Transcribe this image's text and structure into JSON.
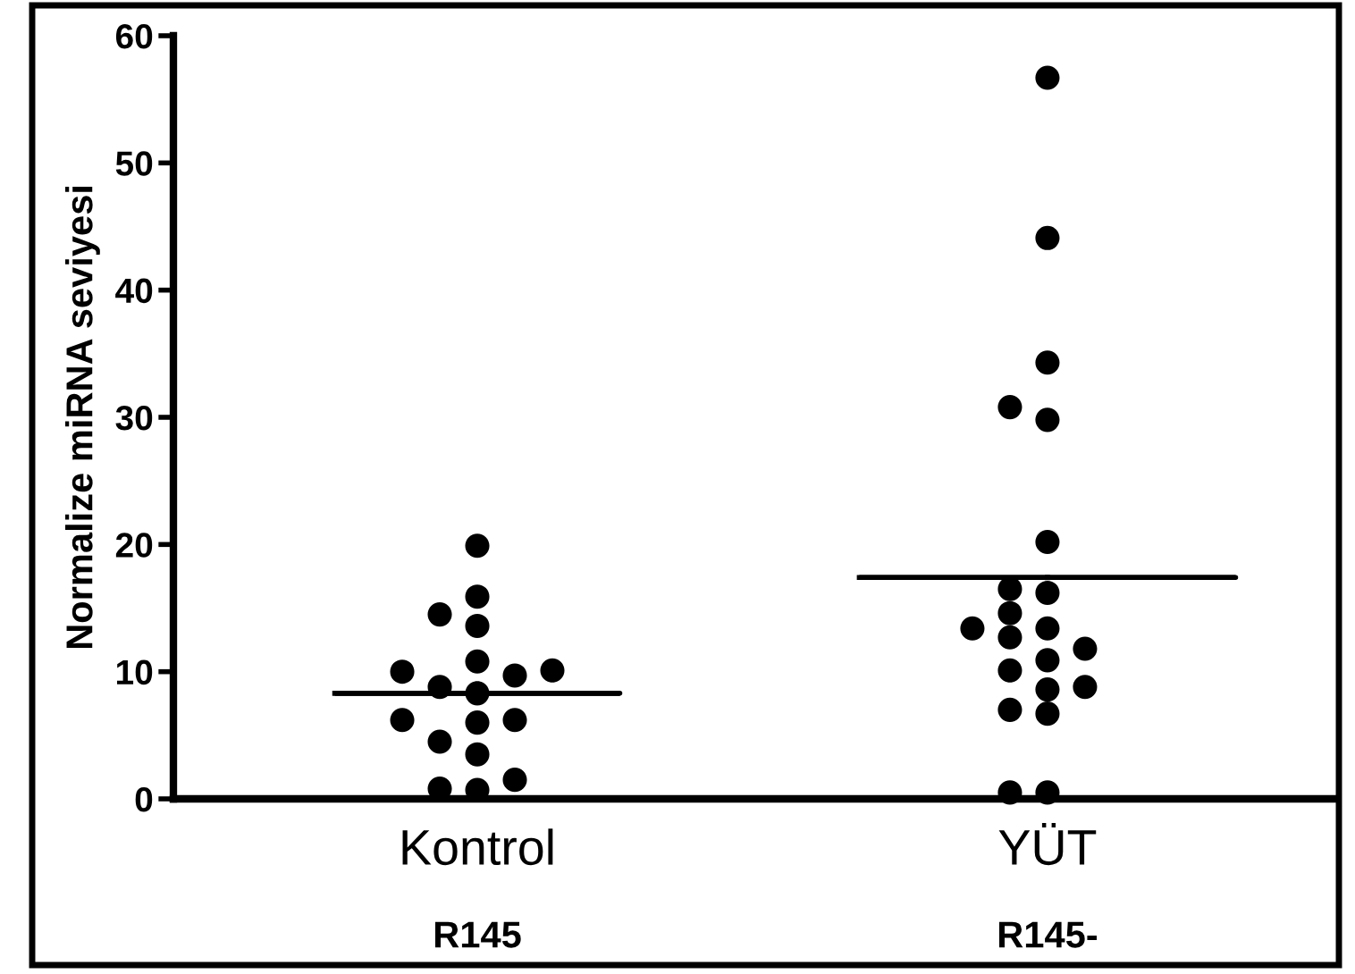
{
  "chart_data": {
    "type": "scatter",
    "ylabel": "Normalize miRNA seviyesi",
    "categories": [
      "Kontrol",
      "YÜT"
    ],
    "series": [
      {
        "color": "#000000",
        "marker": "circle",
        "x": [
          "Kontrol",
          "Kontrol",
          "Kontrol",
          "Kontrol",
          "Kontrol",
          "Kontrol",
          "Kontrol",
          "Kontrol",
          "Kontrol",
          "Kontrol",
          "Kontrol",
          "Kontrol",
          "Kontrol",
          "Kontrol",
          "Kontrol",
          "Kontrol",
          "Kontrol",
          "Kontrol"
        ],
        "values": [
          19.9,
          15.9,
          14.5,
          13.6,
          10.8,
          10.1,
          10.0,
          9.7,
          8.8,
          8.3,
          6.2,
          6.2,
          6.0,
          4.5,
          3.5,
          1.5,
          0.8,
          0.7
        ]
      },
      {
        "color": "#000000",
        "marker": "circle",
        "x": [
          "YÜT",
          "YÜT",
          "YÜT",
          "YÜT",
          "YÜT",
          "YÜT",
          "YÜT",
          "YÜT",
          "YÜT",
          "YÜT",
          "YÜT",
          "YÜT",
          "YÜT",
          "YÜT",
          "YÜT",
          "YÜT",
          "YÜT",
          "YÜT",
          "YÜT",
          "YÜT",
          "YÜT"
        ],
        "values": [
          56.7,
          44.1,
          34.3,
          30.8,
          29.8,
          20.2,
          16.5,
          16.2,
          14.6,
          13.4,
          13.4,
          12.7,
          11.8,
          10.9,
          10.1,
          8.8,
          8.6,
          7.0,
          6.7,
          0.5,
          0.5
        ]
      },
      {
        "type": "box",
        "color": "#000000",
        "boxes": [
          {
            "low": 8.3,
            "q1": 8.3,
            "median": 8.3,
            "q3": 8.3,
            "high": 8.3
          },
          {
            "low": 17.4,
            "q1": 17.4,
            "median": 17.4,
            "q3": 17.4,
            "high": 17.4
          }
        ]
      }
    ],
    "ylim": [
      0,
      60
    ],
    "yticks": [
      0,
      10,
      20,
      30,
      40,
      50,
      60
    ],
    "grid": false,
    "legend": false,
    "annotations": [
      "R145",
      "R145-"
    ]
  }
}
